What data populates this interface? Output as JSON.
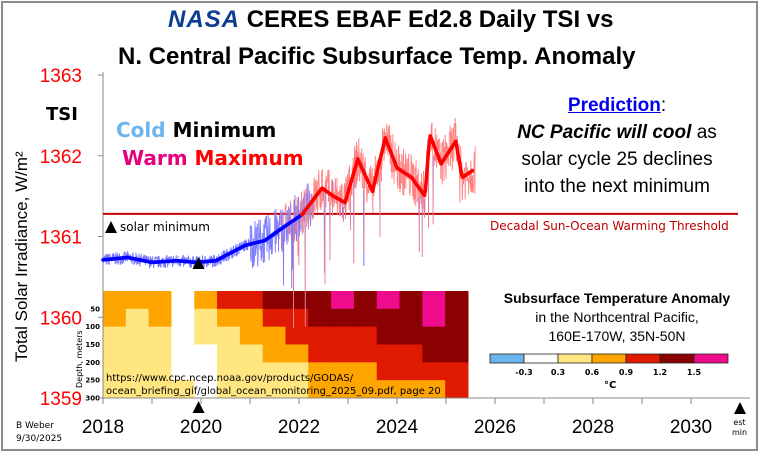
{
  "title": {
    "logo": "NASA",
    "line1": "CERES EBAF Ed2.8 Daily TSI vs",
    "line2": "N. Central Pacific Subsurface Temp. Anomaly",
    "logo_color": "#0b3d91"
  },
  "labels": {
    "tsi": "TSI",
    "cold": "Cold",
    "minimum": "Minimum",
    "warm": "Warm",
    "maximum": "Maximum",
    "prediction_head": "Prediction",
    "prediction_colon": ":",
    "prediction_1": "NC Pacific will cool",
    "prediction_1b": " as",
    "prediction_2": "solar cycle 25 declines",
    "prediction_3": "into the next minimum",
    "solar_minimum": "solar minimum",
    "threshold": "Decadal Sun-Ocean Warming Threshold",
    "source_1": "https://www.cpc.ncep.noaa.gov/products/GODAS/",
    "source_2": "ocean_briefing_gif/global_ocean_monitoring_2025_09.pdf,   page 20",
    "author": "B Weber",
    "date": "9/30/2025",
    "est_min_1": "est",
    "est_min_2": "min",
    "legend_title": "Subsurface Temperature Anomaly",
    "legend_sub1": "in the Northcentral Pacific,",
    "legend_sub2": "160E-170W, 35N-50N",
    "legend_unit": "°C"
  },
  "chart_data": [
    {
      "type": "line",
      "ylabel": "Total Solar Irradiance, W/m²",
      "xlim": [
        2018,
        2031
      ],
      "ylim": [
        1359,
        1363
      ],
      "x_ticks": [
        "2018",
        "2020",
        "2022",
        "2024",
        "2026",
        "2028",
        "2030"
      ],
      "y_ticks": [
        "1359",
        "1360",
        "1361",
        "1362",
        "1363"
      ],
      "threshold": 1361.28,
      "solar_minimum_year": 2019.95,
      "est_minimum_year": 2031.0,
      "colors": {
        "cold_raw": "#7a7aff",
        "cold_smooth": "#0000ff",
        "warm_raw": "#ff8080",
        "warm_smooth": "#ff0000",
        "threshold": "#c00000",
        "axis_text": "#ff0000"
      },
      "smoothed_series": {
        "x": [
          2018.0,
          2018.5,
          2019.0,
          2019.5,
          2019.9,
          2020.3,
          2020.9,
          2021.3,
          2021.6,
          2022.06,
          2022.47,
          2022.7,
          2022.94,
          2023.2,
          2023.5,
          2023.76,
          2024.0,
          2024.3,
          2024.57,
          2024.67,
          2024.9,
          2025.2,
          2025.33,
          2025.55
        ],
        "y": [
          1360.71,
          1360.74,
          1360.68,
          1360.7,
          1360.68,
          1360.7,
          1360.89,
          1360.95,
          1361.08,
          1361.27,
          1361.6,
          1361.5,
          1361.42,
          1361.96,
          1361.56,
          1362.22,
          1361.85,
          1361.73,
          1361.5,
          1362.26,
          1361.9,
          1362.18,
          1361.73,
          1361.82
        ]
      }
    },
    {
      "type": "heatmap",
      "ylabel": "Depth,  meters",
      "depth_ticks": [
        "50",
        "100",
        "150",
        "200",
        "250",
        "300"
      ],
      "x": [
        2018.0,
        2018.5,
        2019.0,
        2019.5,
        2020.0,
        2020.5,
        2021.0,
        2021.5,
        2022.0,
        2022.5,
        2023.0,
        2023.5,
        2024.0,
        2024.5,
        2025.0,
        2025.5
      ],
      "depths": [
        25,
        75,
        125,
        175,
        225,
        275
      ],
      "values": [
        [
          0.7,
          0.6,
          0.5,
          0.4,
          0.4,
          0.4
        ],
        [
          0.6,
          0.5,
          0.5,
          0.45,
          0.4,
          0.4
        ],
        [
          0.8,
          0.6,
          0.5,
          0.5,
          0.4,
          0.4
        ],
        [
          0.2,
          0.2,
          0.2,
          0.1,
          0.1,
          0.4
        ],
        [
          0.7,
          0.5,
          0.4,
          0.2,
          0.1,
          0.1
        ],
        [
          1.0,
          0.8,
          0.5,
          0.5,
          0.4,
          0.4
        ],
        [
          1.0,
          0.8,
          0.6,
          0.5,
          0.4,
          0.4
        ],
        [
          1.3,
          1.0,
          0.8,
          0.7,
          0.5,
          0.4
        ],
        [
          1.3,
          1.0,
          0.9,
          0.7,
          0.5,
          0.5
        ],
        [
          1.4,
          1.2,
          1.0,
          0.9,
          0.7,
          0.6
        ],
        [
          1.6,
          1.3,
          1.0,
          0.9,
          0.7,
          0.6
        ],
        [
          1.3,
          1.2,
          1.1,
          0.9,
          0.8,
          0.7
        ],
        [
          1.5,
          1.3,
          1.2,
          1.0,
          0.9,
          0.7
        ],
        [
          1.3,
          1.3,
          1.2,
          1.0,
          0.9,
          0.8
        ],
        [
          1.6,
          1.6,
          1.3,
          1.25,
          0.9,
          0.8
        ],
        [
          1.3,
          1.3,
          1.3,
          1.3,
          1.0,
          0.9
        ]
      ],
      "legend_bins": [
        "-0.3",
        "0.3",
        "0.6",
        "0.9",
        "1.2",
        "1.5"
      ],
      "legend_colors": [
        "#6cb4ee",
        "#ffffff",
        "#ffe680",
        "#ffa500",
        "#e01a00",
        "#8b0000",
        "#ee0c8c"
      ]
    }
  ]
}
